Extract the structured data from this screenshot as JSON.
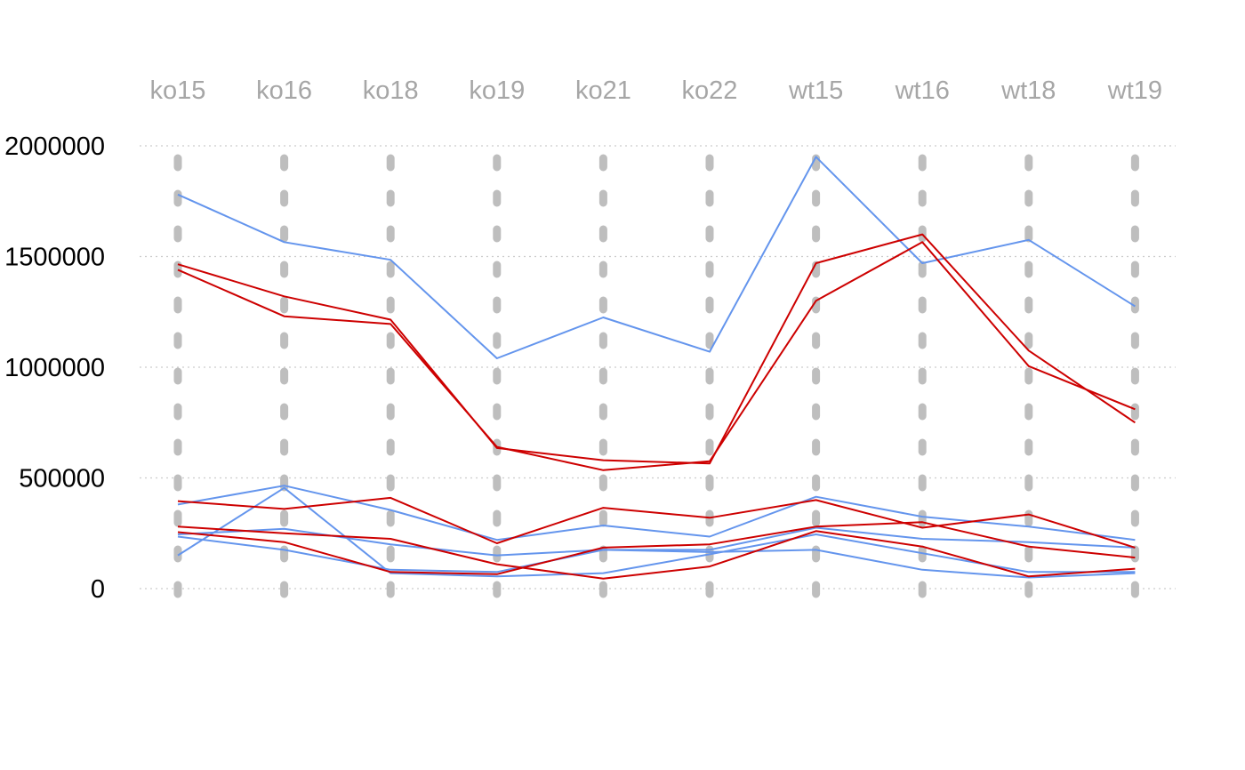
{
  "chart_data": {
    "type": "line",
    "title": "",
    "xlabel": "",
    "ylabel": "",
    "categories": [
      "ko15",
      "ko16",
      "ko18",
      "ko19",
      "ko21",
      "ko22",
      "wt15",
      "wt16",
      "wt18",
      "wt19"
    ],
    "y_ticks": [
      "0",
      "500000",
      "1000000",
      "1500000",
      "2000000"
    ],
    "ylim": [
      0,
      2000000
    ],
    "grid": "horizontal dotted",
    "x_labels_position": "top",
    "colors": {
      "blue": "#6495ed",
      "red": "#cd0000",
      "guides": "#bebebe",
      "grid": "#cccccc"
    },
    "series": [
      {
        "color": "blue",
        "values": [
          1780000,
          1565000,
          1485000,
          1040000,
          1225000,
          1070000,
          1950000,
          1470000,
          1575000,
          1275000
        ]
      },
      {
        "color": "blue",
        "values": [
          380000,
          465000,
          355000,
          220000,
          285000,
          235000,
          415000,
          325000,
          280000,
          220000
        ]
      },
      {
        "color": "blue",
        "values": [
          245000,
          270000,
          200000,
          150000,
          175000,
          165000,
          175000,
          85000,
          50000,
          70000
        ]
      },
      {
        "color": "blue",
        "values": [
          235000,
          175000,
          85000,
          75000,
          175000,
          175000,
          275000,
          225000,
          210000,
          185000
        ]
      },
      {
        "color": "blue",
        "values": [
          150000,
          455000,
          70000,
          55000,
          70000,
          155000,
          245000,
          160000,
          75000,
          75000
        ]
      },
      {
        "color": "red",
        "values": [
          1465000,
          1320000,
          1215000,
          635000,
          580000,
          565000,
          1470000,
          1600000,
          1075000,
          750000
        ]
      },
      {
        "color": "red",
        "values": [
          1440000,
          1230000,
          1195000,
          640000,
          535000,
          575000,
          1300000,
          1565000,
          1005000,
          810000
        ]
      },
      {
        "color": "red",
        "values": [
          395000,
          360000,
          410000,
          205000,
          365000,
          320000,
          400000,
          275000,
          335000,
          185000
        ]
      },
      {
        "color": "red",
        "values": [
          280000,
          250000,
          225000,
          110000,
          45000,
          100000,
          260000,
          190000,
          55000,
          90000
        ]
      },
      {
        "color": "red",
        "values": [
          255000,
          210000,
          75000,
          65000,
          185000,
          200000,
          280000,
          300000,
          190000,
          140000
        ]
      }
    ]
  }
}
